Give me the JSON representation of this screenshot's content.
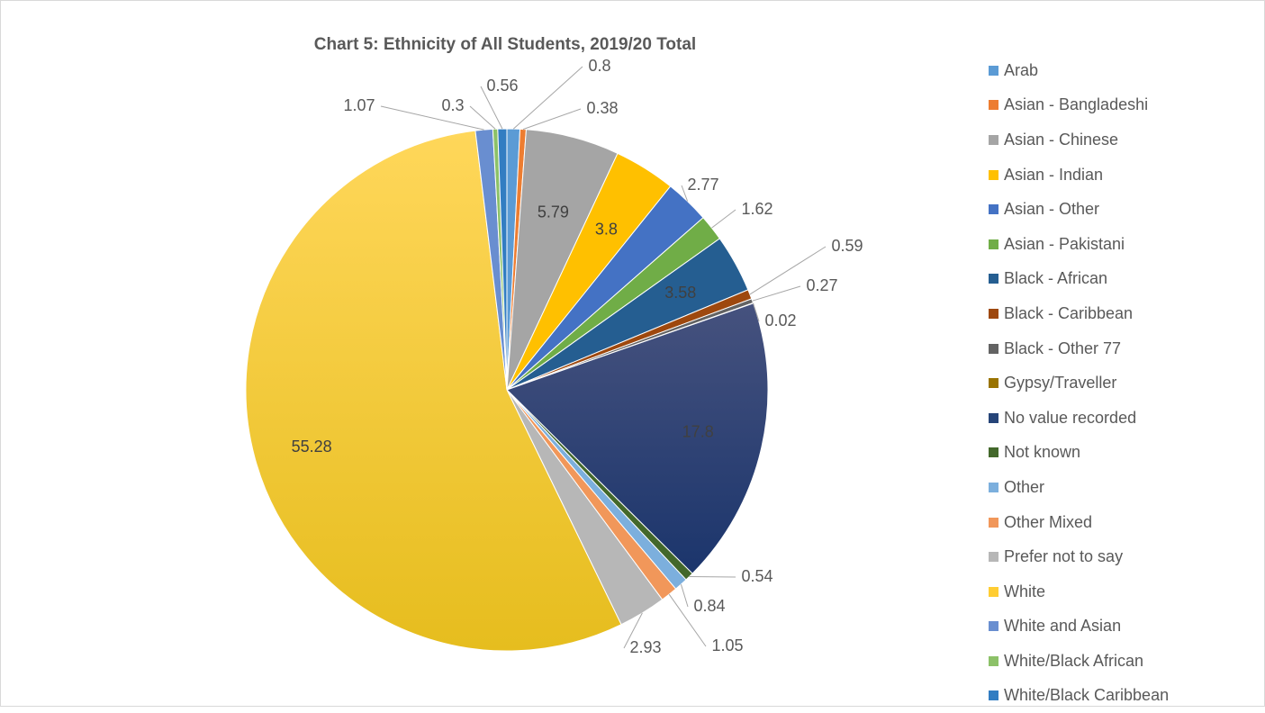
{
  "chart_data": {
    "type": "pie",
    "title": "Chart 5: Ethnicity of All Students, 2019/20 Total",
    "legend_position": "right",
    "series": [
      {
        "category": "Arab",
        "value": 0.8,
        "color": "#5B9BD5"
      },
      {
        "category": "Asian - Bangladeshi",
        "value": 0.38,
        "color": "#ED7D31"
      },
      {
        "category": "Asian - Chinese",
        "value": 5.79,
        "color": "#A5A5A5"
      },
      {
        "category": "Asian - Indian",
        "value": 3.8,
        "color": "#FFC000"
      },
      {
        "category": "Asian - Other",
        "value": 2.77,
        "color": "#4472C4"
      },
      {
        "category": "Asian - Pakistani",
        "value": 1.62,
        "color": "#70AD47"
      },
      {
        "category": "Black - African",
        "value": 3.58,
        "color": "#255E91"
      },
      {
        "category": "Black - Caribbean",
        "value": 0.59,
        "color": "#9E480E"
      },
      {
        "category": "Black - Other 77",
        "value": 0.27,
        "color": "#636363"
      },
      {
        "category": "Gypsy/Traveller",
        "value": 0.02,
        "color": "#997300"
      },
      {
        "category": "No value recorded",
        "value": 17.8,
        "color": "#264478"
      },
      {
        "category": "Not known",
        "value": 0.54,
        "color": "#43682B"
      },
      {
        "category": "Other",
        "value": 0.84,
        "color": "#7CAFDD"
      },
      {
        "category": "Other Mixed",
        "value": 1.05,
        "color": "#F1975A"
      },
      {
        "category": "Prefer not to say",
        "value": 2.93,
        "color": "#B7B7B7"
      },
      {
        "category": "White",
        "value": 55.28,
        "color": "#FFCD33"
      },
      {
        "category": "White and Asian",
        "value": 1.07,
        "color": "#698ED0"
      },
      {
        "category": "White/Black African",
        "value": 0.3,
        "color": "#8CC168"
      },
      {
        "category": "White/Black Caribbean",
        "value": 0.56,
        "color": "#327DC2"
      }
    ],
    "data_labels": [
      "0.8",
      "0.38",
      "5.79",
      "3.8",
      "2.77",
      "1.62",
      "3.58",
      "0.59",
      "0.27",
      "0.02",
      "17.8",
      "0.54",
      "0.84",
      "1.05",
      "2.93",
      "55.28",
      "1.07",
      "0.3",
      "0.56"
    ]
  }
}
